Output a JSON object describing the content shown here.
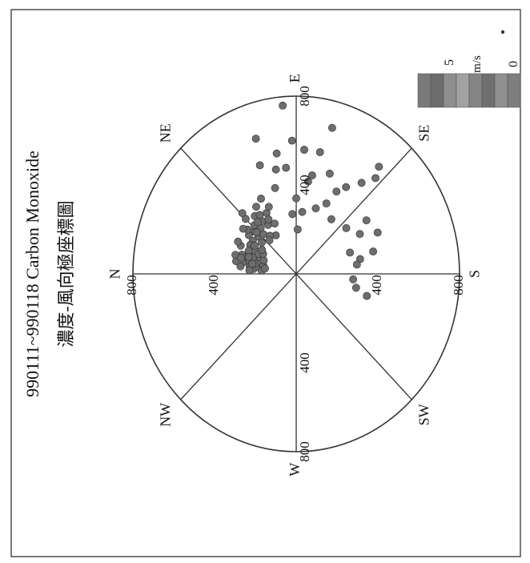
{
  "chart_data": {
    "type": "scatter",
    "coordinate_system": "polar",
    "title": "990111~990118 Carbon Monoxide",
    "subtitle": "濃度-風向極座標圖",
    "radial_ticks": [
      "400",
      "800",
      "400",
      "800",
      "400",
      "800",
      "400",
      "800",
      "400",
      "800"
    ],
    "radial_range": [
      0,
      800
    ],
    "directions": [
      "N",
      "NE",
      "E",
      "SE",
      "S",
      "SW",
      "W",
      "NW"
    ],
    "legend": {
      "unit": "m/s",
      "labels": [
        "5",
        "0"
      ],
      "colors": [
        "#7a7a7a",
        "#6c6c6c",
        "#8e8e8e",
        "#a2a2a2",
        "#858585",
        "#707070",
        "#909090",
        "#7e7e7e"
      ]
    },
    "point_color": "#6e6e6e",
    "series": [
      {
        "points": [
          {
            "dir": 37,
            "r": 290
          },
          {
            "dir": 40,
            "r": 310
          },
          {
            "dir": 43,
            "r": 280
          },
          {
            "dir": 47,
            "r": 300
          },
          {
            "dir": 50,
            "r": 270
          },
          {
            "dir": 55,
            "r": 290
          },
          {
            "dir": 58,
            "r": 260
          },
          {
            "dir": 62,
            "r": 310
          },
          {
            "dir": 65,
            "r": 250
          },
          {
            "dir": 42,
            "r": 250
          },
          {
            "dir": 48,
            "r": 240
          },
          {
            "dir": 52,
            "r": 330
          },
          {
            "dir": 45,
            "r": 350
          },
          {
            "dir": 57,
            "r": 360
          },
          {
            "dir": 40,
            "r": 220
          },
          {
            "dir": 60,
            "r": 200
          },
          {
            "dir": 35,
            "r": 260
          },
          {
            "dir": 53,
            "r": 215
          },
          {
            "dir": 46,
            "r": 380
          },
          {
            "dir": 63,
            "r": 380
          },
          {
            "dir": 38,
            "r": 330
          },
          {
            "dir": 49,
            "r": 200
          },
          {
            "dir": 56,
            "r": 320
          },
          {
            "dir": 61,
            "r": 280
          },
          {
            "dir": 66,
            "r": 330
          },
          {
            "dir": 44,
            "r": 270
          },
          {
            "dir": 51,
            "r": 300
          },
          {
            "dir": 8,
            "r": 230
          },
          {
            "dir": 12,
            "r": 260
          },
          {
            "dir": 15,
            "r": 240
          },
          {
            "dir": 18,
            "r": 280
          },
          {
            "dir": 22,
            "r": 250
          },
          {
            "dir": 6,
            "r": 210
          },
          {
            "dir": 10,
            "r": 190
          },
          {
            "dir": 20,
            "r": 210
          },
          {
            "dir": 25,
            "r": 300
          },
          {
            "dir": 28,
            "r": 230
          },
          {
            "dir": 5,
            "r": 170
          },
          {
            "dir": 14,
            "r": 200
          },
          {
            "dir": 17,
            "r": 180
          },
          {
            "dir": 23,
            "r": 195
          },
          {
            "dir": 30,
            "r": 260
          },
          {
            "dir": 32,
            "r": 240
          },
          {
            "dir": 11,
            "r": 300
          },
          {
            "dir": 13,
            "r": 165
          },
          {
            "dir": 19,
            "r": 225
          },
          {
            "dir": 26,
            "r": 205
          },
          {
            "dir": 7,
            "r": 275
          },
          {
            "dir": 9,
            "r": 155
          },
          {
            "dir": 16,
            "r": 310
          },
          {
            "dir": 21,
            "r": 170
          },
          {
            "dir": 24,
            "r": 255
          },
          {
            "dir": 29,
            "r": 185
          },
          {
            "dir": 4,
            "r": 230
          },
          {
            "dir": 27,
            "r": 320
          },
          {
            "dir": 33,
            "r": 200
          },
          {
            "dir": 12,
            "r": 220
          },
          {
            "dir": 18,
            "r": 245
          },
          {
            "dir": 15,
            "r": 280
          },
          {
            "dir": 78,
            "r": 480
          },
          {
            "dir": 80,
            "r": 550
          },
          {
            "dir": 85,
            "r": 760
          },
          {
            "dir": 84,
            "r": 480
          },
          {
            "dir": 75,
            "r": 400
          },
          {
            "dir": 70,
            "r": 520
          },
          {
            "dir": 72,
            "r": 640
          },
          {
            "dir": 88,
            "r": 600
          },
          {
            "dir": 90,
            "r": 340
          },
          {
            "dir": 86,
            "r": 270
          },
          {
            "dir": 92,
            "r": 200
          },
          {
            "dir": 98,
            "r": 420
          },
          {
            "dir": 100,
            "r": 450
          },
          {
            "dir": 102,
            "r": 560
          },
          {
            "dir": 105,
            "r": 680
          },
          {
            "dir": 108,
            "r": 310
          },
          {
            "dir": 96,
            "r": 280
          },
          {
            "dir": 110,
            "r": 480
          },
          {
            "dir": 115,
            "r": 350
          },
          {
            "dir": 118,
            "r": 420
          },
          {
            "dir": 94,
            "r": 560
          },
          {
            "dir": 122,
            "r": 460
          },
          {
            "dir": 125,
            "r": 300
          },
          {
            "dir": 128,
            "r": 520
          },
          {
            "dir": 130,
            "r": 630
          },
          {
            "dir": 132,
            "r": 580
          },
          {
            "dir": 140,
            "r": 320
          },
          {
            "dir": 145,
            "r": 420
          },
          {
            "dir": 150,
            "r": 360
          },
          {
            "dir": 155,
            "r": 440
          },
          {
            "dir": 160,
            "r": 280
          },
          {
            "dir": 165,
            "r": 390
          },
          {
            "dir": 168,
            "r": 320
          },
          {
            "dir": 172,
            "r": 300
          },
          {
            "dir": 185,
            "r": 280
          },
          {
            "dir": 192,
            "r": 300
          },
          {
            "dir": 196,
            "r": 360
          }
        ]
      }
    ]
  }
}
